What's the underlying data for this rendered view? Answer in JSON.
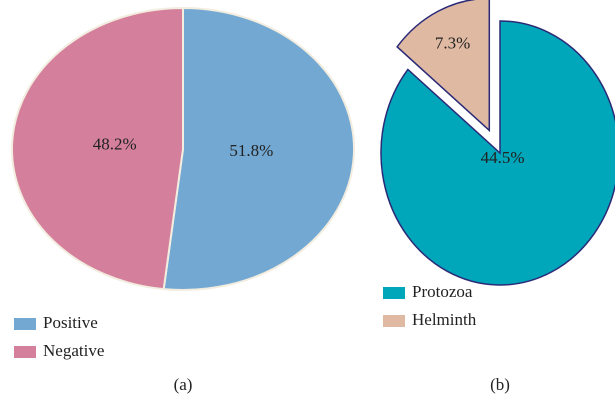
{
  "chart_data": [
    {
      "type": "pie",
      "caption": "(a)",
      "categories": [
        "Positive",
        "Negative"
      ],
      "values": [
        51.8,
        48.2
      ],
      "value_labels": [
        "51.8%",
        "48.2%"
      ],
      "colors": [
        "#73a8d2",
        "#d4809d"
      ]
    },
    {
      "type": "pie",
      "caption": "(b)",
      "categories": [
        "Protozoa",
        "Helminth"
      ],
      "values": [
        44.5,
        7.3
      ],
      "value_labels": [
        "44.5%",
        "7.3%"
      ],
      "colors": [
        "#00a6b9",
        "#dfb9a2"
      ]
    }
  ]
}
